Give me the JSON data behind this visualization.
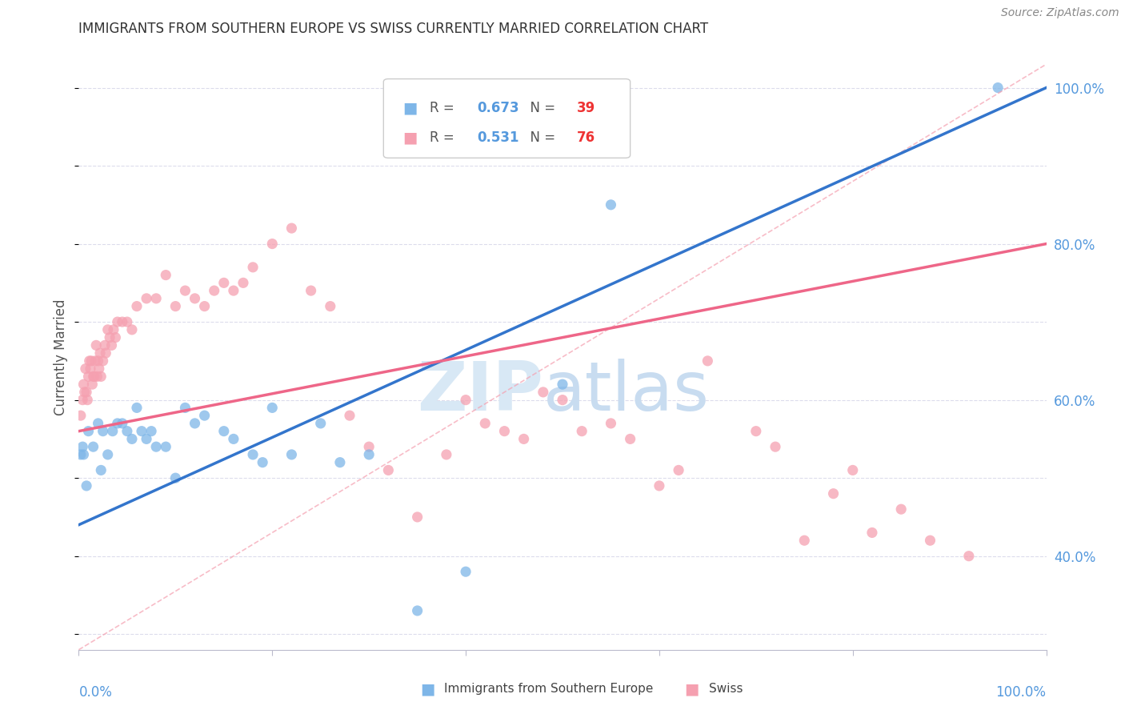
{
  "title": "IMMIGRANTS FROM SOUTHERN EUROPE VS SWISS CURRENTLY MARRIED CORRELATION CHART",
  "source": "Source: ZipAtlas.com",
  "ylabel": "Currently Married",
  "right_ytick_values": [
    40.0,
    60.0,
    80.0,
    100.0
  ],
  "legend1_label": "Immigrants from Southern Europe",
  "legend2_label": "Swiss",
  "R1": "0.673",
  "N1": "39",
  "R2": "0.531",
  "N2": "76",
  "blue_color": "#7EB6E8",
  "pink_color": "#F5A0B0",
  "blue_line_color": "#3375CC",
  "pink_line_color": "#EE6688",
  "ref_line_color": "#F5A0B0",
  "blue_scatter_x": [
    0.5,
    1.0,
    1.5,
    2.0,
    2.3,
    2.5,
    3.0,
    3.5,
    4.0,
    4.5,
    5.0,
    5.5,
    6.0,
    6.5,
    7.0,
    7.5,
    8.0,
    9.0,
    10.0,
    11.0,
    12.0,
    13.0,
    15.0,
    16.0,
    18.0,
    19.0,
    20.0,
    22.0,
    25.0,
    27.0,
    30.0,
    35.0,
    40.0,
    50.0,
    55.0,
    0.2,
    0.4,
    0.8,
    95.0
  ],
  "blue_scatter_y": [
    53,
    56,
    54,
    57,
    51,
    56,
    53,
    56,
    57,
    57,
    56,
    55,
    59,
    56,
    55,
    56,
    54,
    54,
    50,
    59,
    57,
    58,
    56,
    55,
    53,
    52,
    59,
    53,
    57,
    52,
    53,
    33,
    38,
    62,
    85,
    53,
    54,
    49,
    100
  ],
  "pink_scatter_x": [
    0.2,
    0.4,
    0.5,
    0.6,
    0.7,
    0.8,
    0.9,
    1.0,
    1.1,
    1.2,
    1.3,
    1.4,
    1.5,
    1.6,
    1.7,
    1.8,
    1.9,
    2.0,
    2.1,
    2.2,
    2.3,
    2.5,
    2.7,
    2.8,
    3.0,
    3.2,
    3.4,
    3.6,
    3.8,
    4.0,
    4.5,
    5.0,
    5.5,
    6.0,
    7.0,
    8.0,
    9.0,
    10.0,
    11.0,
    12.0,
    13.0,
    14.0,
    15.0,
    16.0,
    17.0,
    18.0,
    20.0,
    22.0,
    24.0,
    26.0,
    28.0,
    30.0,
    32.0,
    35.0,
    38.0,
    40.0,
    42.0,
    44.0,
    46.0,
    48.0,
    50.0,
    52.0,
    55.0,
    57.0,
    60.0,
    62.0,
    65.0,
    70.0,
    72.0,
    75.0,
    78.0,
    80.0,
    82.0,
    85.0,
    88.0,
    92.0
  ],
  "pink_scatter_y": [
    58,
    60,
    62,
    61,
    64,
    61,
    60,
    63,
    65,
    64,
    65,
    62,
    63,
    63,
    65,
    67,
    63,
    65,
    64,
    66,
    63,
    65,
    67,
    66,
    69,
    68,
    67,
    69,
    68,
    70,
    70,
    70,
    69,
    72,
    73,
    73,
    76,
    72,
    74,
    73,
    72,
    74,
    75,
    74,
    75,
    77,
    80,
    82,
    74,
    72,
    58,
    54,
    51,
    45,
    53,
    60,
    57,
    56,
    55,
    61,
    60,
    56,
    57,
    55,
    49,
    51,
    65,
    56,
    54,
    42,
    48,
    51,
    43,
    46,
    42,
    40
  ],
  "xlim": [
    0,
    100
  ],
  "ylim": [
    28,
    103
  ],
  "blue_line_x": [
    0,
    100
  ],
  "blue_line_y": [
    44,
    100
  ],
  "pink_line_x": [
    0,
    100
  ],
  "pink_line_y": [
    56,
    80
  ],
  "ref_line_x": [
    0,
    100
  ],
  "ref_line_y": [
    28,
    103
  ],
  "background_color": "#ffffff",
  "grid_color": "#DCDCEC",
  "watermark_zip_color": "#D8E8F5",
  "watermark_atlas_color": "#C8DCF0",
  "title_color": "#333333",
  "source_color": "#888888",
  "ylabel_color": "#555555",
  "right_tick_color": "#5599DD",
  "xlabel_color": "#5599DD",
  "legend_R_color": "#5599DD",
  "legend_N_color": "#EE3333"
}
